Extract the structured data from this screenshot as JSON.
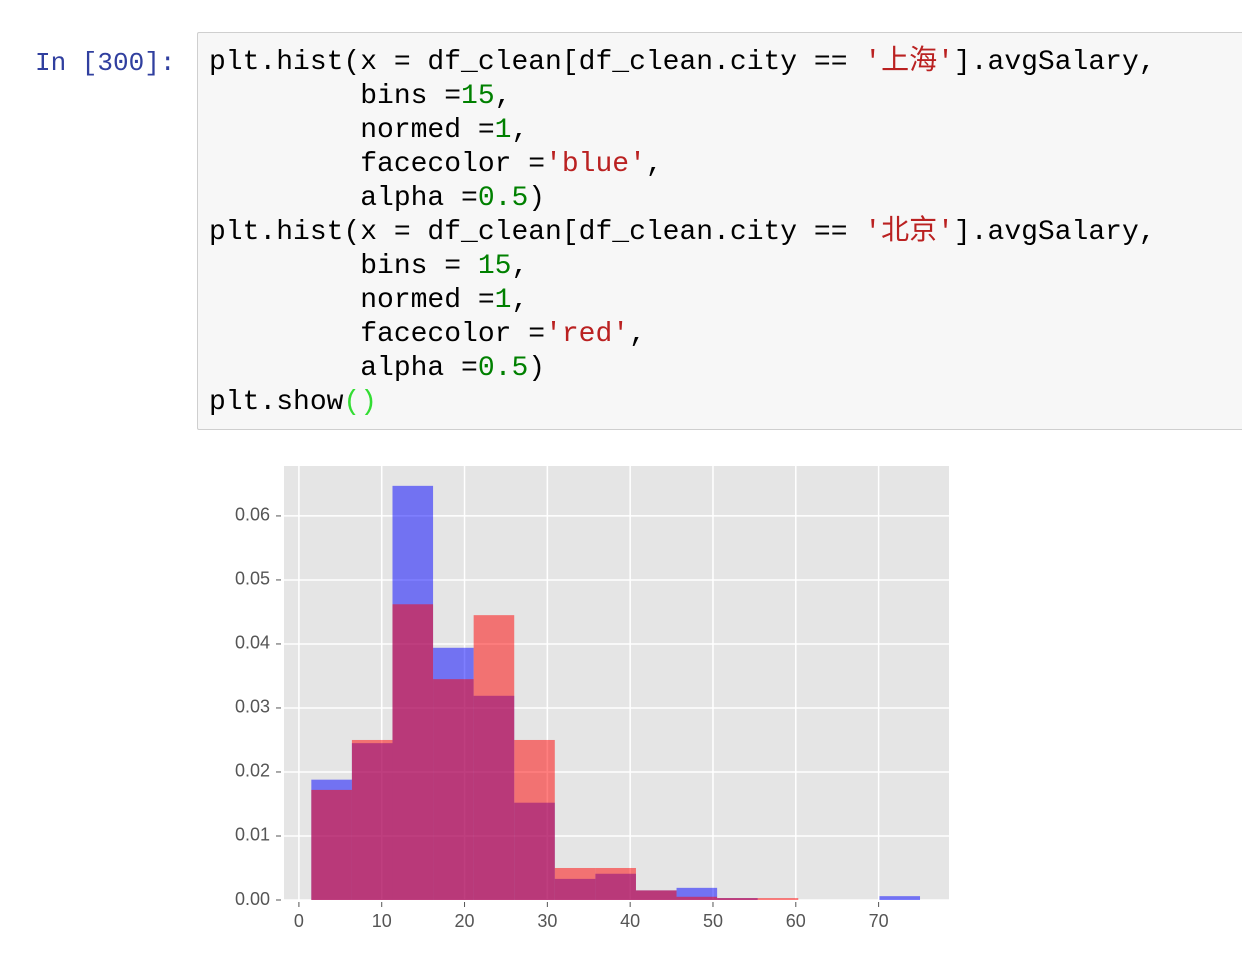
{
  "prompt": "In [300]:",
  "code": {
    "lines": [
      [
        {
          "text": "plt.hist(x = df_clean[df_clean.city == ",
          "color": "#000000"
        },
        {
          "text": "'上海'",
          "color": "#ba2121"
        },
        {
          "text": "].avgSalary,",
          "color": "#000000"
        }
      ],
      [
        {
          "text": "         bins =",
          "color": "#000000"
        },
        {
          "text": "15",
          "color": "#008000"
        },
        {
          "text": ",",
          "color": "#000000"
        }
      ],
      [
        {
          "text": "         normed =",
          "color": "#000000"
        },
        {
          "text": "1",
          "color": "#008000"
        },
        {
          "text": ",",
          "color": "#000000"
        }
      ],
      [
        {
          "text": "         facecolor =",
          "color": "#000000"
        },
        {
          "text": "'blue'",
          "color": "#ba2121"
        },
        {
          "text": ",",
          "color": "#000000"
        }
      ],
      [
        {
          "text": "         alpha =",
          "color": "#000000"
        },
        {
          "text": "0.5",
          "color": "#008000"
        },
        {
          "text": ")",
          "color": "#000000"
        }
      ],
      [
        {
          "text": "plt.hist(x = df_clean[df_clean.city == ",
          "color": "#000000"
        },
        {
          "text": "'北京'",
          "color": "#ba2121"
        },
        {
          "text": "].avgSalary,",
          "color": "#000000"
        }
      ],
      [
        {
          "text": "         bins = ",
          "color": "#000000"
        },
        {
          "text": "15",
          "color": "#008000"
        },
        {
          "text": ",",
          "color": "#000000"
        }
      ],
      [
        {
          "text": "         normed =",
          "color": "#000000"
        },
        {
          "text": "1",
          "color": "#008000"
        },
        {
          "text": ",",
          "color": "#000000"
        }
      ],
      [
        {
          "text": "         facecolor =",
          "color": "#000000"
        },
        {
          "text": "'red'",
          "color": "#ba2121"
        },
        {
          "text": ",",
          "color": "#000000"
        }
      ],
      [
        {
          "text": "         alpha =",
          "color": "#000000"
        },
        {
          "text": "0.5",
          "color": "#008000"
        },
        {
          "text": ")",
          "color": "#000000"
        }
      ],
      [
        {
          "text": "plt.show",
          "color": "#000000"
        },
        {
          "text": "()",
          "color": "#33dd33"
        }
      ]
    ]
  },
  "chart_data": {
    "type": "histogram",
    "bins": [
      1.5,
      6.4,
      11.3,
      16.2,
      21.1,
      26.0,
      30.9,
      35.8,
      40.7,
      45.6,
      50.5,
      55.4,
      60.3,
      65.2,
      70.1,
      75.0
    ],
    "series": [
      {
        "color": "blue",
        "alpha": 0.5,
        "values": [
          0.0188,
          0.0245,
          0.0647,
          0.0394,
          0.0319,
          0.0152,
          0.0033,
          0.0041,
          0.0015,
          0.0019,
          0.0003,
          0,
          0,
          0,
          0.0006
        ]
      },
      {
        "color": "red",
        "alpha": 0.5,
        "values": [
          0.0172,
          0.025,
          0.0462,
          0.0345,
          0.0445,
          0.025,
          0.005,
          0.005,
          0.0015,
          0.0005,
          0.0003,
          0.0003,
          0,
          0,
          0
        ]
      }
    ],
    "xlim": [
      -1.8,
      78.5
    ],
    "ylim": [
      0,
      0.0678
    ],
    "xticks": [
      0,
      10,
      20,
      30,
      40,
      50,
      60,
      70
    ],
    "yticks": [
      {
        "value": 0,
        "label": "0.00"
      },
      0.01,
      0.02,
      0.03,
      0.04,
      0.05,
      0.06
    ],
    "grid": true
  }
}
